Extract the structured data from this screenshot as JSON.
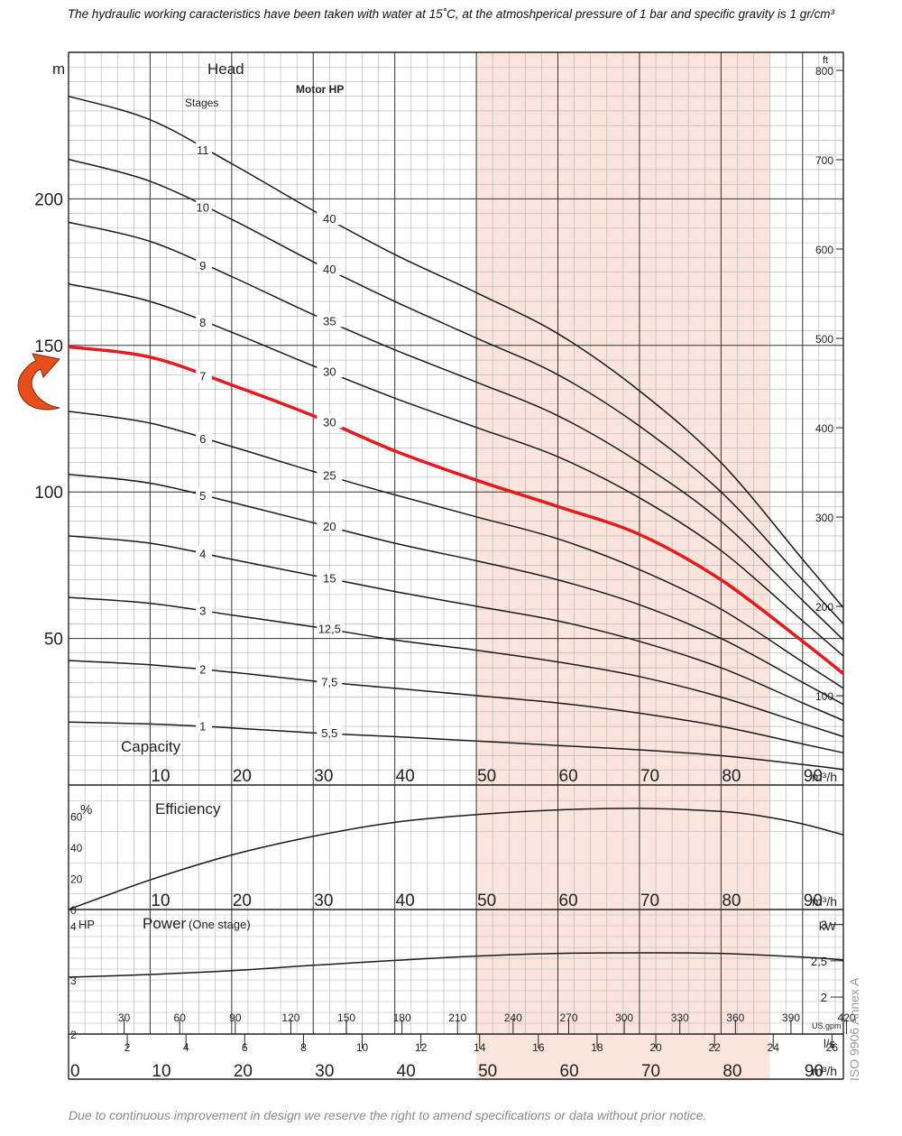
{
  "header": {
    "note": "The hydraulic working caracteristics have been taken with water at 15˚C, at the atmoshperical pressure of 1 bar and specific gravity is 1 gr/cm³"
  },
  "footer": {
    "note": "Due to continuous improvement in design we reserve the right to amend specifications or data without prior notice."
  },
  "standard_label": "ISO 9906 Annex A",
  "colors": {
    "grid_minor": "#b0b0b0",
    "grid_major": "#333333",
    "curve": "#1a1a1a",
    "highlight_curve": "#e8191c",
    "shaded_band": "#fbe4dc",
    "arrow": "#e84e1b"
  },
  "chart_data": [
    {
      "type": "line",
      "name": "head",
      "title": "Head",
      "xlabel": "Capacity",
      "ylabel": "m",
      "y2label": "ft",
      "x_unit": "m³/h",
      "xlim": [
        0,
        95
      ],
      "ylim": [
        0,
        250
      ],
      "y_ticks": [
        50,
        100,
        150,
        200
      ],
      "y2_ticks": [
        100,
        200,
        300,
        400,
        500,
        600,
        700,
        800
      ],
      "x_ticks": [
        10,
        20,
        30,
        40,
        50,
        60,
        70,
        80,
        90
      ],
      "shaded_range": [
        50,
        86
      ],
      "stages_label": "Stages",
      "motor_label": "Motor HP",
      "highlight_stage": "7",
      "x": [
        0,
        10,
        20,
        30,
        40,
        50,
        60,
        70,
        80,
        90,
        95
      ],
      "series": [
        {
          "name": "1",
          "hp_label": "5,5",
          "values": [
            21.5,
            20.8,
            19.5,
            17.8,
            16.5,
            15.0,
            13.5,
            12.0,
            10.0,
            7.0,
            5.3
          ]
        },
        {
          "name": "2",
          "hp_label": "7,5",
          "values": [
            42.5,
            41.0,
            38.5,
            35.5,
            33.0,
            30.5,
            28.0,
            24.5,
            20.0,
            14.0,
            11.0
          ]
        },
        {
          "name": "3",
          "hp_label": "12,5",
          "values": [
            64,
            62,
            58,
            54,
            49.5,
            46,
            42,
            37,
            30,
            21,
            16.5
          ]
        },
        {
          "name": "4",
          "hp_label": "15",
          "values": [
            85,
            82.5,
            77,
            71.5,
            66,
            61,
            56,
            49,
            40,
            28,
            22
          ]
        },
        {
          "name": "5",
          "hp_label": "20",
          "values": [
            106,
            103,
            96.5,
            89.5,
            82.5,
            76.5,
            70,
            61.5,
            50,
            35,
            27.5
          ]
        },
        {
          "name": "6",
          "hp_label": "25",
          "values": [
            127.5,
            123.5,
            115.5,
            107,
            99,
            91.5,
            84,
            73.5,
            60,
            42,
            33
          ]
        },
        {
          "name": "7",
          "hp_label": "30",
          "values": [
            149.5,
            146,
            136.5,
            126,
            114,
            104,
            95,
            85.5,
            70,
            49,
            38
          ]
        },
        {
          "name": "8",
          "hp_label": "30",
          "values": [
            171,
            165,
            154.5,
            143,
            132,
            122,
            112,
            98,
            80,
            56,
            44
          ]
        },
        {
          "name": "9",
          "hp_label": "35",
          "values": [
            192,
            185.5,
            173.5,
            160.5,
            148.5,
            137.5,
            126,
            110,
            90,
            63,
            49.5
          ]
        },
        {
          "name": "10",
          "hp_label": "40",
          "values": [
            213.5,
            206,
            193,
            178.5,
            165,
            152.5,
            140,
            122.5,
            100,
            70,
            55
          ]
        },
        {
          "name": "11",
          "hp_label": "40",
          "values": [
            235,
            227,
            212,
            196,
            181,
            168,
            154,
            134.5,
            110,
            77,
            60.5
          ]
        }
      ]
    },
    {
      "type": "line",
      "name": "efficiency",
      "title": "Efficiency",
      "ylabel": "%",
      "x_unit": "m³/h",
      "xlim": [
        0,
        95
      ],
      "ylim": [
        0,
        80
      ],
      "y_ticks": [
        0,
        20,
        40,
        60
      ],
      "x_ticks": [
        10,
        20,
        30,
        40,
        50,
        60,
        70,
        80,
        90
      ],
      "x": [
        0,
        10,
        20,
        30,
        40,
        50,
        60,
        70,
        80,
        85,
        90,
        95
      ],
      "values": [
        0,
        19,
        35,
        47,
        56,
        61,
        64,
        65,
        63,
        60,
        55,
        48
      ]
    },
    {
      "type": "line",
      "name": "power",
      "title": "Power",
      "title_suffix": "(One stage)",
      "ylabel": "HP",
      "y2label": "kW",
      "x_unit": "m³/h",
      "xlim": [
        0,
        95
      ],
      "ylim": [
        2,
        4.3
      ],
      "y_ticks": [
        2,
        3,
        4
      ],
      "y2_ticks": [
        "2",
        "2,5",
        "3"
      ],
      "x": [
        0,
        10,
        20,
        30,
        40,
        50,
        60,
        70,
        80,
        90,
        95
      ],
      "values": [
        3.05,
        3.1,
        3.17,
        3.27,
        3.36,
        3.44,
        3.49,
        3.5,
        3.49,
        3.42,
        3.37
      ]
    }
  ],
  "scales": {
    "usgpm": {
      "unit": "US.gpm",
      "ticks": [
        30,
        60,
        90,
        120,
        150,
        180,
        210,
        240,
        270,
        300,
        330,
        360,
        390,
        420
      ]
    },
    "ls": {
      "unit": "l/s",
      "ticks": [
        2,
        4,
        6,
        8,
        10,
        12,
        14,
        16,
        18,
        20,
        22,
        24,
        26
      ]
    },
    "m3h": {
      "unit": "m³/h",
      "ticks": [
        0,
        10,
        20,
        30,
        40,
        50,
        60,
        70,
        80,
        90
      ]
    }
  }
}
